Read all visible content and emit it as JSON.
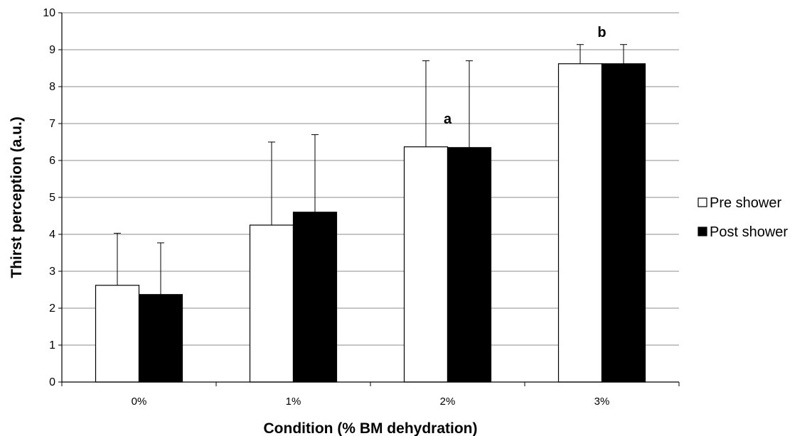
{
  "chart_data": {
    "type": "bar",
    "title": "",
    "xlabel": "Condition (% BM dehydration)",
    "ylabel": "Thirst perception (a.u.)",
    "categories": [
      "0%",
      "1%",
      "2%",
      "3%"
    ],
    "ylim": [
      0,
      10
    ],
    "yticks": [
      "0",
      "1",
      "2",
      "3",
      "4",
      "5",
      "6",
      "7",
      "8",
      "9",
      "10"
    ],
    "grid": true,
    "legend_position": "right",
    "series": [
      {
        "name": "Pre shower",
        "values": [
          2.62,
          4.25,
          6.37,
          8.62
        ],
        "errors": [
          1.41,
          2.25,
          2.33,
          0.52
        ],
        "color": "#ffffff"
      },
      {
        "name": "Post shower",
        "values": [
          2.37,
          4.6,
          6.35,
          8.62
        ],
        "errors": [
          1.4,
          2.1,
          2.35,
          0.52
        ],
        "color": "#000000"
      }
    ],
    "annotations": [
      {
        "text": "a",
        "category": "2%",
        "y": 7.0
      },
      {
        "text": "b",
        "category": "3%",
        "y": 9.35
      }
    ]
  }
}
